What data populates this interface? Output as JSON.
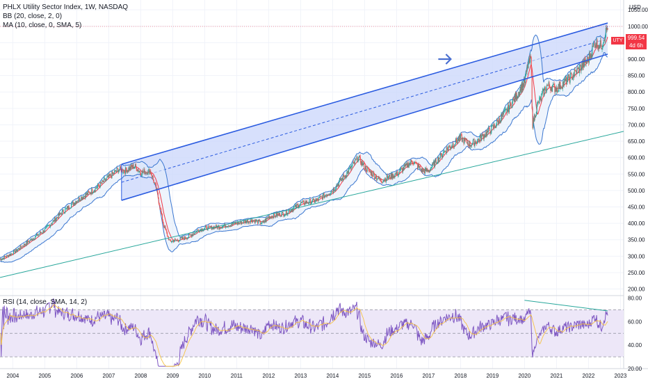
{
  "header": {
    "title": "PHLX Utility Sector Index, 1W, NASDAQ",
    "indicator_bb": "BB (20, close, 2, 0)",
    "indicator_ma": "MA (10, close, 0, SMA, 5)",
    "indicator_rsi": "RSI (14, close, SMA, 14, 2)"
  },
  "price_badge": {
    "symbol": "UTY",
    "price": "999.54",
    "countdown": "4d 6h"
  },
  "currency": "USD",
  "colors": {
    "channel": "#2a5be0",
    "channel_fill": "#c9d6fb",
    "support": "#26a69a",
    "bb": "#3a76d0",
    "ma": "#f23645",
    "rsi_line": "#7e57c2",
    "rsi_sma": "#f6c344",
    "rsi_band": "#ede7f8",
    "arrow": "#4a6fd0",
    "up": "#26a69a",
    "down": "#ef5350"
  },
  "chart_data": [
    {
      "type": "line",
      "title": "PHLX Utility Sector Index, 1W, NASDAQ",
      "x_ticks": [
        "2004",
        "2005",
        "2006",
        "2007",
        "2008",
        "2009",
        "2010",
        "2011",
        "2012",
        "2013",
        "2014",
        "2015",
        "2016",
        "2017",
        "2018",
        "2019",
        "2020",
        "2021",
        "2022",
        "2023"
      ],
      "xlim": [
        2003.6,
        2023.1
      ],
      "ylim": [
        180,
        1080
      ],
      "y_ticks": [
        200,
        250,
        300,
        350,
        400,
        450,
        500,
        550,
        600,
        650,
        700,
        750,
        800,
        850,
        900,
        950,
        1000,
        1050
      ],
      "x": [
        2003.6,
        2004.0,
        2004.5,
        2005.0,
        2005.5,
        2006.0,
        2006.5,
        2007.0,
        2007.3,
        2007.5,
        2007.8,
        2008.0,
        2008.3,
        2008.5,
        2008.7,
        2008.9,
        2009.2,
        2009.5,
        2009.8,
        2010.0,
        2010.5,
        2011.0,
        2011.5,
        2011.8,
        2012.0,
        2012.5,
        2013.0,
        2013.5,
        2014.0,
        2014.5,
        2014.8,
        2015.0,
        2015.5,
        2016.0,
        2016.5,
        2016.8,
        2017.0,
        2017.5,
        2018.0,
        2018.3,
        2018.5,
        2019.0,
        2019.5,
        2020.0,
        2020.1,
        2020.2,
        2020.25,
        2020.4,
        2020.7,
        2021.0,
        2021.5,
        2022.0,
        2022.2,
        2022.4,
        2022.6
      ],
      "series": [
        {
          "name": "",
          "values": [
            290,
            310,
            345,
            380,
            430,
            470,
            500,
            540,
            565,
            560,
            575,
            555,
            560,
            500,
            400,
            345,
            350,
            360,
            380,
            385,
            390,
            400,
            410,
            400,
            420,
            430,
            460,
            470,
            500,
            560,
            600,
            570,
            530,
            550,
            590,
            560,
            560,
            620,
            660,
            640,
            650,
            690,
            750,
            830,
            880,
            900,
            700,
            760,
            820,
            810,
            850,
            900,
            950,
            940,
            1000
          ]
        }
      ],
      "overlays": [
        {
          "name": "BB (20, close, 2, 0)",
          "kind": "band"
        },
        {
          "name": "MA (10, close, 0, SMA, 5)",
          "kind": "line"
        }
      ],
      "annotations": {
        "channel_upper": {
          "x": [
            2007.4,
            2022.6
          ],
          "y": [
            580,
            1010
          ]
        },
        "channel_lower": {
          "x": [
            2007.4,
            2022.6
          ],
          "y": [
            470,
            915
          ]
        },
        "support_line": {
          "x": [
            2003.6,
            2023.1
          ],
          "y": [
            235,
            680
          ]
        },
        "arrow_at": {
          "x": 2017.5,
          "y": 900
        }
      },
      "last_price": 999.54
    },
    {
      "type": "line",
      "title": "RSI (14, close, SMA, 14, 2)",
      "ylim": [
        20,
        82
      ],
      "y_ticks": [
        20,
        40,
        60,
        80
      ],
      "upper_band": 70,
      "lower_band": 30,
      "middle": 50,
      "divergence_line": {
        "x": [
          2020.0,
          2022.6
        ],
        "y": [
          78,
          69
        ]
      }
    }
  ]
}
